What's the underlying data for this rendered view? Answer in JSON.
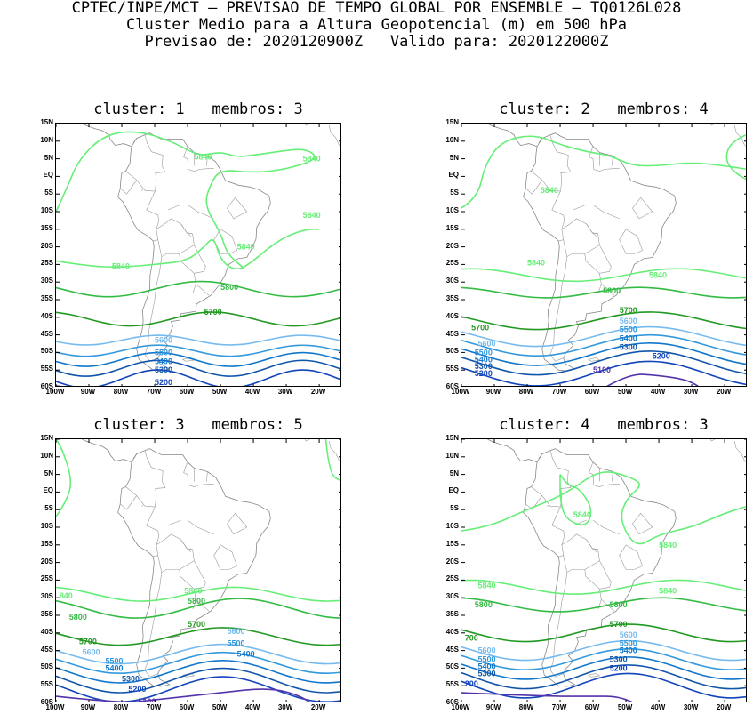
{
  "header": {
    "line1": "CPTEC/INPE/MCT — PREVISAO DE TEMPO GLOBAL POR ENSEMBLE — TQ0126L028",
    "line2": "Cluster Medio para a Altura Geopotencial (m) em 500 hPa",
    "line3": "Previsao de: 2020120900Z   Valido para: 2020122000Z"
  },
  "axes": {
    "lat_labels": [
      "15N",
      "10N",
      "5N",
      "EQ",
      "5S",
      "10S",
      "15S",
      "20S",
      "25S",
      "30S",
      "35S",
      "40S",
      "45S",
      "50S",
      "55S",
      "60S"
    ],
    "lon_labels": [
      "100W",
      "90W",
      "80W",
      "70W",
      "60W",
      "50W",
      "40W",
      "30W",
      "20W"
    ],
    "lat_range": [
      -60,
      15
    ],
    "lon_range": [
      -100,
      -13
    ]
  },
  "contour_colors": {
    "5840": "#66ee77",
    "5800": "#33bb44",
    "5700": "#229922",
    "5600": "#77bbee",
    "5500": "#3399dd",
    "5400": "#1177cc",
    "5300": "#1155aa",
    "5200": "#1144bb",
    "5100": "#5533aa"
  },
  "panels": [
    {
      "title": "cluster: 1   membros: 3",
      "labels": [
        "5840",
        "5840",
        "5840",
        "5840",
        "5840",
        "5800",
        "5700",
        "5600",
        "5500",
        "5400",
        "5300",
        "5200"
      ]
    },
    {
      "title": "cluster: 2   membros: 4",
      "labels": [
        "5840",
        "5840",
        "5840",
        "5800",
        "5700",
        "5700",
        "5600",
        "5600",
        "5500",
        "5500",
        "5400",
        "5400",
        "5300",
        "5300",
        "5200",
        "5200",
        "5100"
      ]
    },
    {
      "title": "cluster: 3   membros: 5",
      "labels": [
        "840",
        "5840",
        "5800",
        "5800",
        "5700",
        "5700",
        "5600",
        "5600",
        "5500",
        "5500",
        "5400",
        "5400",
        "5300",
        "5200",
        "5100"
      ]
    },
    {
      "title": "cluster: 4   membros: 3",
      "labels": [
        "5840",
        "5840",
        "5840",
        "5840",
        "5800",
        "5800",
        "700",
        "5700",
        "5600",
        "5600",
        "5500",
        "5500",
        "5400",
        "5400",
        "5300",
        "5300",
        "5200",
        "200"
      ]
    }
  ]
}
